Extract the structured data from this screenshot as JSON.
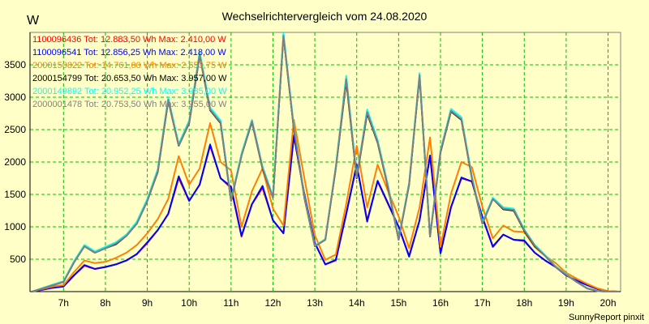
{
  "chart_data": {
    "type": "line",
    "title": "Wechselrichtervergleich vom 24.08.2020",
    "ylabel": "W",
    "xlabel": "",
    "xlim": [
      6.2,
      20.3
    ],
    "ylim": [
      0,
      4000
    ],
    "yticks": [
      500,
      1000,
      1500,
      2000,
      2500,
      3000,
      3500
    ],
    "xticks": [
      7,
      8,
      9,
      10,
      11,
      12,
      13,
      14,
      15,
      16,
      17,
      18,
      19,
      20
    ],
    "xtick_labels": [
      "7h",
      "8h",
      "9h",
      "10h",
      "11h",
      "12h",
      "13h",
      "14h",
      "15h",
      "16h",
      "17h",
      "18h",
      "19h",
      "20h"
    ],
    "grid": true,
    "x": [
      6.25,
      6.5,
      6.75,
      7.0,
      7.25,
      7.5,
      7.75,
      8.0,
      8.25,
      8.5,
      8.75,
      9.0,
      9.25,
      9.5,
      9.75,
      10.0,
      10.25,
      10.5,
      10.75,
      11.0,
      11.25,
      11.5,
      11.75,
      12.0,
      12.25,
      12.5,
      12.75,
      13.0,
      13.25,
      13.5,
      13.75,
      14.0,
      14.25,
      14.5,
      14.75,
      15.0,
      15.25,
      15.5,
      15.75,
      16.0,
      16.25,
      16.5,
      16.75,
      17.0,
      17.25,
      17.5,
      17.75,
      18.0,
      18.25,
      18.5,
      18.75,
      19.0,
      19.25,
      19.5,
      19.75,
      20.0,
      20.25
    ],
    "series": [
      {
        "name": "1100096436",
        "legend": "1100096436 Tot: 12.883,50 Wh Max: 2.410,00 W",
        "color": "#ff0000",
        "values": [
          0,
          30,
          60,
          80,
          250,
          400,
          350,
          380,
          420,
          480,
          580,
          750,
          950,
          1200,
          1750,
          1400,
          1650,
          2250,
          1750,
          1600,
          850,
          1350,
          1600,
          1100,
          900,
          2400,
          1500,
          750,
          420,
          480,
          1200,
          1950,
          1100,
          1700,
          1350,
          1000,
          550,
          1100,
          2100,
          600,
          1300,
          1750,
          1700,
          1150,
          700,
          880,
          800,
          780,
          600,
          480,
          380,
          250,
          170,
          100,
          40,
          5,
          0
        ]
      },
      {
        "name": "1100096541",
        "legend": "1100096541 Tot: 12.856,25 Wh Max: 2.418,00 W",
        "color": "#0000ff",
        "values": [
          0,
          30,
          60,
          80,
          250,
          410,
          350,
          380,
          420,
          480,
          580,
          760,
          950,
          1200,
          1780,
          1400,
          1650,
          2270,
          1750,
          1620,
          860,
          1350,
          1630,
          1100,
          900,
          2410,
          1500,
          750,
          420,
          490,
          1200,
          1960,
          1080,
          1710,
          1360,
          1000,
          540,
          1100,
          2100,
          590,
          1300,
          1760,
          1700,
          1150,
          690,
          880,
          800,
          790,
          600,
          480,
          380,
          250,
          170,
          100,
          40,
          5,
          0
        ]
      },
      {
        "name": "2000150822",
        "legend": "2000150822 Tot: 14.761,00 Wh Max: 2.653,75 W",
        "color": "#ff8000",
        "values": [
          0,
          40,
          80,
          100,
          300,
          480,
          440,
          460,
          520,
          600,
          720,
          900,
          1120,
          1430,
          2090,
          1650,
          1900,
          2600,
          2000,
          1870,
          1000,
          1550,
          1900,
          1280,
          1020,
          2650,
          1750,
          870,
          490,
          570,
          1350,
          2250,
          1300,
          1960,
          1550,
          1160,
          670,
          1300,
          2380,
          690,
          1510,
          2000,
          1920,
          1310,
          820,
          1020,
          930,
          920,
          690,
          550,
          440,
          290,
          200,
          120,
          50,
          8,
          0
        ]
      },
      {
        "name": "2000154799",
        "legend": "2000154799 Tot: 20.653,50 Wh Max: 3.957,00 W",
        "color": "#000000",
        "values": [
          0,
          50,
          100,
          150,
          450,
          700,
          600,
          670,
          730,
          860,
          1050,
          1400,
          1850,
          2950,
          2250,
          2600,
          3650,
          2800,
          2600,
          1400,
          2100,
          2620,
          1900,
          1450,
          3950,
          2500,
          1450,
          700,
          800,
          1900,
          3250,
          1750,
          2750,
          2300,
          1600,
          800,
          1650,
          3330,
          850,
          2150,
          2780,
          2650,
          1750,
          1050,
          1430,
          1270,
          1250,
          940,
          700,
          550,
          380,
          260,
          150,
          50,
          8,
          0,
          0
        ]
      },
      {
        "name": "2000149892",
        "legend": "2000149892 Tot: 20.952,25 Wh Max: 3.985,00 W",
        "color": "#00ffff",
        "values": [
          0,
          55,
          110,
          160,
          470,
          720,
          620,
          690,
          760,
          880,
          1080,
          1430,
          1890,
          2990,
          2280,
          2640,
          3700,
          2840,
          2640,
          1420,
          2130,
          2650,
          1930,
          1470,
          3990,
          2540,
          1470,
          710,
          810,
          1930,
          3330,
          1780,
          2810,
          2340,
          1630,
          810,
          1680,
          3370,
          860,
          2180,
          2820,
          2690,
          1780,
          1070,
          1450,
          1300,
          1280,
          960,
          720,
          560,
          390,
          270,
          150,
          55,
          8,
          0,
          0
        ]
      },
      {
        "name": "2000001478",
        "legend": "2000001478 Tot: 20.753,50 Wh Max: 3.955,00 W",
        "color": "#808080",
        "values": [
          0,
          50,
          100,
          150,
          450,
          700,
          600,
          670,
          740,
          860,
          1050,
          1400,
          1860,
          2960,
          2250,
          2610,
          3660,
          2810,
          2610,
          1400,
          2100,
          2630,
          1910,
          1450,
          3950,
          2510,
          1460,
          700,
          800,
          1910,
          3280,
          1760,
          2770,
          2310,
          1610,
          800,
          1660,
          3340,
          850,
          2160,
          2790,
          2660,
          1760,
          1050,
          1430,
          1280,
          1260,
          950,
          710,
          550,
          380,
          260,
          150,
          50,
          8,
          0,
          0
        ]
      }
    ]
  },
  "footer": "SunnyReport pinxit"
}
